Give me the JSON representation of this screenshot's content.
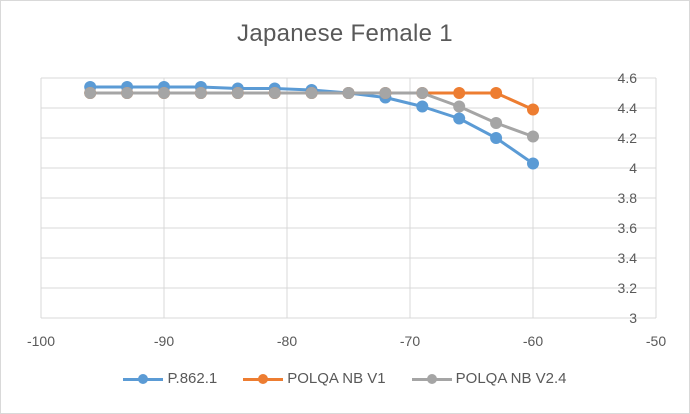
{
  "chart_data": {
    "type": "line",
    "title": "Japanese Female 1",
    "xlabel": "",
    "ylabel": "",
    "xlim": [
      -100,
      -50
    ],
    "ylim": [
      3,
      4.6
    ],
    "x_ticks": [
      "-100",
      "-90",
      "-80",
      "-70",
      "-60",
      "-50"
    ],
    "y_ticks": [
      "3",
      "3.2",
      "3.4",
      "3.6",
      "3.8",
      "4",
      "4.2",
      "4.4",
      "4.6"
    ],
    "y_axis_position": "right",
    "grid": true,
    "legend_position": "bottom",
    "x": [
      -96,
      -93,
      -90,
      -87,
      -84,
      -81,
      -78,
      -75,
      -72,
      -69,
      -66,
      -63,
      -60
    ],
    "series": [
      {
        "name": "P.862.1",
        "color": "#5b9bd5",
        "values": [
          4.54,
          4.54,
          4.54,
          4.54,
          4.53,
          4.53,
          4.52,
          4.5,
          4.47,
          4.41,
          4.33,
          4.2,
          4.03
        ]
      },
      {
        "name": "POLQA NB V1",
        "color": "#ed7d31",
        "values": [
          4.5,
          4.5,
          4.5,
          4.5,
          4.5,
          4.5,
          4.5,
          4.5,
          4.5,
          4.5,
          4.5,
          4.5,
          4.39
        ]
      },
      {
        "name": "POLQA NB V2.4",
        "color": "#a5a5a5",
        "values": [
          4.5,
          4.5,
          4.5,
          4.5,
          4.5,
          4.5,
          4.5,
          4.5,
          4.5,
          4.5,
          4.41,
          4.3,
          4.21
        ]
      }
    ]
  }
}
